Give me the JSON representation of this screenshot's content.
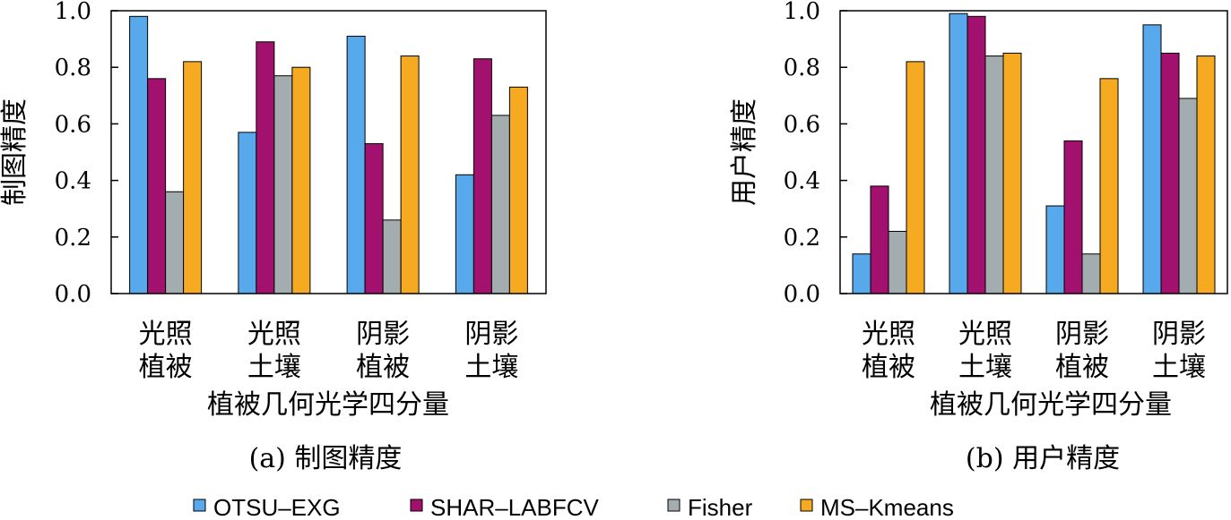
{
  "chart_data": [
    {
      "type": "bar",
      "caption": "(a) 制图精度",
      "ylabel": "制图精度",
      "xlabel": "植被几何光学四分量",
      "categories": [
        [
          "光照",
          "植被"
        ],
        [
          "光照",
          "土壤"
        ],
        [
          "阴影",
          "植被"
        ],
        [
          "阴影",
          "土壤"
        ]
      ],
      "ylim": [
        0,
        1.0
      ],
      "yticks": [
        "0.0",
        "0.2",
        "0.4",
        "0.6",
        "0.8",
        "1.0"
      ],
      "series": [
        {
          "name": "OTSU–EXG",
          "color": "#58a8ec",
          "values": [
            0.98,
            0.57,
            0.91,
            0.42
          ]
        },
        {
          "name": "SHAR–LABFCV",
          "color": "#a3116e",
          "values": [
            0.76,
            0.89,
            0.53,
            0.83
          ]
        },
        {
          "name": "Fisher",
          "color": "#a3adb0",
          "values": [
            0.36,
            0.77,
            0.26,
            0.63
          ]
        },
        {
          "name": "MS–Kmeans",
          "color": "#f5aa22",
          "values": [
            0.82,
            0.8,
            0.84,
            0.73
          ]
        }
      ]
    },
    {
      "type": "bar",
      "caption": "(b) 用户精度",
      "ylabel": "用户精度",
      "xlabel": "植被几何光学四分量",
      "categories": [
        [
          "光照",
          "植被"
        ],
        [
          "光照",
          "土壤"
        ],
        [
          "阴影",
          "植被"
        ],
        [
          "阴影",
          "土壤"
        ]
      ],
      "ylim": [
        0,
        1.0
      ],
      "yticks": [
        "0.0",
        "0.2",
        "0.4",
        "0.6",
        "0.8",
        "1.0"
      ],
      "series": [
        {
          "name": "OTSU–EXG",
          "color": "#58a8ec",
          "values": [
            0.14,
            0.99,
            0.31,
            0.95
          ]
        },
        {
          "name": "SHAR–LABFCV",
          "color": "#a3116e",
          "values": [
            0.38,
            0.98,
            0.54,
            0.85
          ]
        },
        {
          "name": "Fisher",
          "color": "#a3adb0",
          "values": [
            0.22,
            0.84,
            0.14,
            0.69
          ]
        },
        {
          "name": "MS–Kmeans",
          "color": "#f5aa22",
          "values": [
            0.82,
            0.85,
            0.76,
            0.84
          ]
        }
      ]
    }
  ],
  "legend": [
    {
      "label": "OTSU–EXG",
      "color": "#58a8ec"
    },
    {
      "label": "SHAR–LABFCV",
      "color": "#a3116e"
    },
    {
      "label": "Fisher",
      "color": "#a3adb0"
    },
    {
      "label": "MS–Kmeans",
      "color": "#f5aa22"
    }
  ]
}
